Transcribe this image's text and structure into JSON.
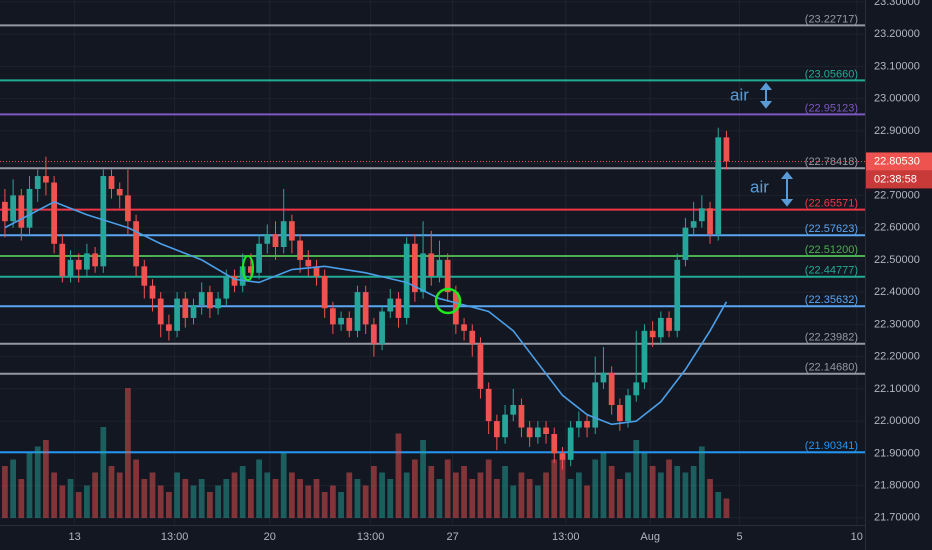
{
  "chart_data": {
    "type": "candlestick",
    "up_color": "#26a69a",
    "down_color": "#ef5350",
    "open": [
      22.68,
      22.62,
      22.7,
      22.6,
      22.72,
      22.76,
      22.74,
      22.55,
      22.45,
      22.5,
      22.47,
      22.52,
      22.48,
      22.76,
      22.72,
      22.7,
      22.62,
      22.48,
      22.42,
      22.38,
      22.3,
      22.28,
      22.38,
      22.32,
      22.36,
      22.4,
      22.35,
      22.38,
      22.45,
      22.42,
      22.48,
      22.46,
      22.55,
      22.58,
      22.54,
      22.62,
      22.56,
      22.5,
      22.48,
      22.45,
      22.35,
      22.3,
      22.32,
      22.28,
      22.4,
      22.3,
      22.24,
      22.34,
      22.38,
      22.32,
      22.55,
      22.4,
      22.52,
      22.45,
      22.5,
      22.4,
      22.3,
      22.28,
      22.24,
      22.1,
      22.0,
      21.95,
      22.02,
      22.05,
      21.98,
      21.95,
      21.98,
      21.96,
      21.9,
      21.88,
      21.98,
      22.0,
      21.98,
      22.12,
      22.15,
      22.05,
      22.0,
      22.08,
      22.12,
      22.28,
      22.26,
      22.32,
      22.28,
      22.5,
      22.6,
      22.62,
      22.66,
      22.58,
      22.88
    ],
    "high": [
      22.72,
      22.75,
      22.72,
      22.76,
      22.78,
      22.82,
      22.76,
      22.58,
      22.53,
      22.52,
      22.55,
      22.54,
      22.78,
      22.78,
      22.74,
      22.78,
      22.64,
      22.5,
      22.44,
      22.4,
      22.33,
      22.4,
      22.4,
      22.38,
      22.43,
      22.42,
      22.4,
      22.47,
      22.47,
      22.52,
      22.52,
      22.58,
      22.61,
      22.62,
      22.72,
      22.64,
      22.58,
      22.53,
      22.5,
      22.47,
      22.37,
      22.34,
      22.34,
      22.42,
      22.42,
      22.32,
      22.36,
      22.41,
      22.4,
      22.57,
      22.58,
      22.62,
      22.59,
      22.56,
      22.52,
      22.42,
      22.32,
      22.3,
      22.26,
      22.12,
      22.02,
      22.05,
      22.1,
      22.07,
      22.0,
      22.0,
      22.0,
      21.98,
      21.92,
      22.0,
      22.03,
      22.02,
      22.2,
      22.23,
      22.17,
      22.07,
      22.1,
      22.28,
      22.3,
      22.31,
      22.34,
      22.34,
      22.52,
      22.63,
      22.68,
      22.7,
      22.68,
      22.91,
      22.9
    ],
    "low": [
      22.57,
      22.6,
      22.56,
      22.58,
      22.68,
      22.7,
      22.52,
      22.43,
      22.43,
      22.43,
      22.45,
      22.46,
      22.46,
      22.69,
      22.66,
      22.58,
      22.45,
      22.38,
      22.34,
      22.26,
      22.25,
      22.26,
      22.29,
      22.3,
      22.33,
      22.32,
      22.33,
      22.36,
      22.4,
      22.4,
      22.44,
      22.44,
      22.52,
      22.5,
      22.52,
      22.52,
      22.46,
      22.45,
      22.42,
      22.32,
      22.27,
      22.28,
      22.26,
      22.26,
      22.27,
      22.2,
      22.22,
      22.32,
      22.29,
      22.3,
      22.37,
      22.38,
      22.42,
      22.43,
      22.37,
      22.27,
      22.25,
      22.2,
      22.07,
      21.96,
      21.91,
      21.93,
      22.0,
      21.95,
      21.92,
      21.93,
      21.93,
      21.87,
      21.85,
      21.86,
      21.95,
      21.95,
      21.96,
      22.1,
      22.02,
      21.97,
      21.98,
      22.06,
      22.1,
      22.23,
      22.24,
      22.26,
      22.26,
      22.48,
      22.58,
      22.6,
      22.55,
      22.56,
      22.78
    ],
    "close": [
      22.62,
      22.7,
      22.6,
      22.72,
      22.76,
      22.74,
      22.55,
      22.45,
      22.5,
      22.47,
      22.52,
      22.48,
      22.76,
      22.72,
      22.7,
      22.62,
      22.48,
      22.42,
      22.38,
      22.3,
      22.28,
      22.38,
      22.32,
      22.36,
      22.4,
      22.35,
      22.38,
      22.45,
      22.42,
      22.48,
      22.46,
      22.55,
      22.58,
      22.54,
      22.62,
      22.56,
      22.5,
      22.48,
      22.45,
      22.35,
      22.3,
      22.32,
      22.28,
      22.4,
      22.3,
      22.24,
      22.34,
      22.38,
      22.32,
      22.55,
      22.4,
      22.52,
      22.45,
      22.5,
      22.4,
      22.3,
      22.28,
      22.24,
      22.1,
      22.0,
      21.95,
      22.02,
      22.05,
      21.98,
      21.95,
      21.98,
      21.96,
      21.9,
      21.88,
      21.98,
      22.0,
      21.98,
      22.12,
      22.15,
      22.05,
      22.0,
      22.08,
      22.12,
      22.28,
      22.26,
      22.32,
      22.28,
      22.5,
      22.6,
      22.62,
      22.66,
      22.58,
      22.88,
      22.8053
    ],
    "volume": [
      40,
      45,
      30,
      50,
      55,
      60,
      35,
      25,
      30,
      20,
      25,
      35,
      70,
      40,
      35,
      100,
      45,
      30,
      35,
      25,
      20,
      35,
      30,
      25,
      30,
      20,
      25,
      30,
      35,
      40,
      30,
      45,
      35,
      30,
      50,
      35,
      30,
      25,
      30,
      20,
      25,
      20,
      35,
      30,
      25,
      40,
      35,
      30,
      65,
      35,
      45,
      60,
      40,
      30,
      45,
      35,
      40,
      30,
      35,
      45,
      30,
      40,
      25,
      35,
      30,
      25,
      35,
      45,
      50,
      30,
      35,
      25,
      45,
      50,
      40,
      30,
      35,
      60,
      50,
      40,
      35,
      45,
      40,
      35,
      40,
      55,
      30,
      20,
      15
    ],
    "y2lim": [
      0,
      100
    ],
    "ma": {
      "color": "#4a9fe8",
      "x": [
        0,
        3,
        6,
        10,
        15,
        19,
        24,
        28,
        31,
        35,
        39,
        44,
        49,
        53,
        56,
        59,
        62,
        65,
        68,
        71,
        74,
        77,
        80,
        83,
        86,
        88
      ],
      "values": [
        22.6,
        22.64,
        22.68,
        22.64,
        22.6,
        22.55,
        22.5,
        22.44,
        22.43,
        22.47,
        22.48,
        22.46,
        22.43,
        22.38,
        22.36,
        22.34,
        22.28,
        22.18,
        22.08,
        22.02,
        21.99,
        22.0,
        22.06,
        22.16,
        22.28,
        22.37
      ]
    },
    "xlim": [
      -0.6,
      104.9
    ],
    "ylim": [
      21.684,
      23.306
    ],
    "xticks": [
      {
        "value": 8.5,
        "label": "13"
      },
      {
        "value": 20.7,
        "label": "13:00"
      },
      {
        "value": 32.3,
        "label": "20"
      },
      {
        "value": 44.6,
        "label": "13:00"
      },
      {
        "value": 54.6,
        "label": "27"
      },
      {
        "value": 68.4,
        "label": "13:00"
      },
      {
        "value": 78.7,
        "label": "Aug"
      },
      {
        "value": 89.6,
        "label": "5"
      },
      {
        "value": 103.9,
        "label": "10"
      }
    ],
    "yticks": [
      {
        "value": 23.3,
        "label": "23.30000"
      },
      {
        "value": 23.2,
        "label": "23.20000"
      },
      {
        "value": 23.1,
        "label": "23.10000"
      },
      {
        "value": 23.0,
        "label": "23.00000"
      },
      {
        "value": 22.9,
        "label": "22.90000"
      },
      {
        "value": 22.8,
        "label": "22.80000"
      },
      {
        "value": 22.7,
        "label": "22.70000"
      },
      {
        "value": 22.6,
        "label": "22.60000"
      },
      {
        "value": 22.5,
        "label": "22.50000"
      },
      {
        "value": 22.4,
        "label": "22.40000"
      },
      {
        "value": 22.3,
        "label": "22.30000"
      },
      {
        "value": 22.2,
        "label": "22.20000"
      },
      {
        "value": 22.1,
        "label": "22.10000"
      },
      {
        "value": 22.0,
        "label": "22.00000"
      },
      {
        "value": 21.9,
        "label": "21.90000"
      },
      {
        "value": 21.8,
        "label": "21.80000"
      },
      {
        "value": 21.7,
        "label": "21.70000"
      }
    ],
    "grid": true,
    "levels": [
      {
        "value": 23.22717,
        "label": "(23.22717)",
        "color": "#9598a1"
      },
      {
        "value": 23.0566,
        "label": "(23.05660)",
        "color": "#22ab94"
      },
      {
        "value": 22.95123,
        "label": "(22.95123)",
        "color": "#7e57c2"
      },
      {
        "value": 22.78418,
        "label": "(22.78418)",
        "color": "#9598a1"
      },
      {
        "value": 22.65571,
        "label": "(22.65571)",
        "color": "#f23645"
      },
      {
        "value": 22.57623,
        "label": "(22.57623)",
        "color": "#5ba6f0"
      },
      {
        "value": 22.512,
        "label": "(22.51200)",
        "color": "#4caf50"
      },
      {
        "value": 22.44777,
        "label": "(22.44777)",
        "color": "#22ab94"
      },
      {
        "value": 22.35632,
        "label": "(22.35632)",
        "color": "#5ba6f0"
      },
      {
        "value": 22.23982,
        "label": "(22.23982)",
        "color": "#9598a1"
      },
      {
        "value": 22.1468,
        "label": "(22.14680)",
        "color": "#9598a1"
      },
      {
        "value": 21.90341,
        "label": "(21.90341)",
        "color": "#2196f3"
      }
    ],
    "last_price": {
      "value": 22.8053,
      "label": "22.80530"
    },
    "countdown": "02:38:58",
    "annotations": [
      "air",
      "air"
    ]
  }
}
